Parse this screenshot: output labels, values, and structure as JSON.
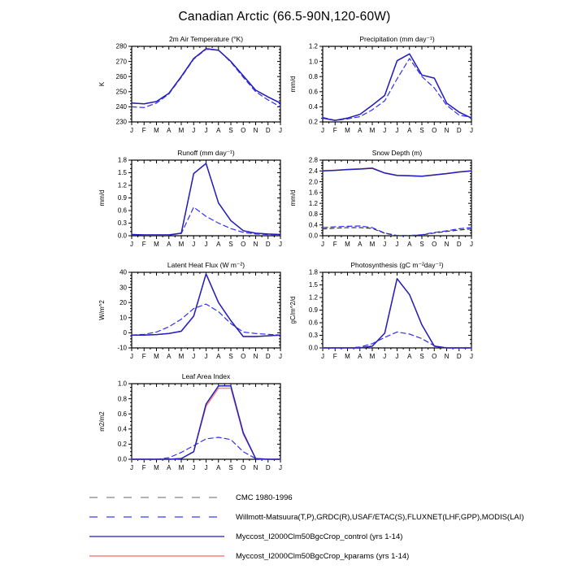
{
  "page_title": "Canadian Arctic (66.5-90N,120-60W)",
  "months": [
    "J",
    "F",
    "M",
    "A",
    "M",
    "J",
    "J",
    "A",
    "S",
    "O",
    "N",
    "D",
    "J"
  ],
  "legend": {
    "items": [
      {
        "id": "cmc",
        "label": "CMC 1980-1996",
        "color": "#999999",
        "dash": "10,11",
        "width": 1.5
      },
      {
        "id": "obs",
        "label": "Willmott-Matsuura(T,P),GRDC(R),USAF/ETAC(S),FLUXNET(LHF,GPP),MODIS(LAI)",
        "color": "#5c5cff",
        "dash": "10,11",
        "width": 1.5
      },
      {
        "id": "control",
        "label": "Myccost_I2000Clm50BgcCrop_control (yrs 1-14)",
        "color": "#4040c8",
        "dash": "",
        "width": 1.5
      },
      {
        "id": "kparams",
        "label": "Myccost_I2000Clm50BgcCrop_kparams (yrs 1-14)",
        "color": "#fa8080",
        "dash": "",
        "width": 1.5
      }
    ]
  },
  "chart_data": [
    {
      "type": "line",
      "title": "2m Air Temperature (°K)",
      "ylabel": "K",
      "ylim": [
        230,
        280
      ],
      "ystep": 10,
      "ysub": 5,
      "ydec": 0,
      "grid": false,
      "series": [
        {
          "id": "obs",
          "name": "Willmott-Matsuura(T,P)",
          "color": "#2d2dff",
          "dash": "6,4",
          "width": 1.2,
          "values": [
            240,
            239.5,
            242.5,
            248.5,
            259.5,
            271.5,
            278,
            277.5,
            269.5,
            259.5,
            250,
            244.5,
            240
          ]
        },
        {
          "id": "kparams",
          "name": "Myccost_I2000Clm50BgcCrop_kparams",
          "color": "#fa8072",
          "dash": "",
          "width": 1.4,
          "values": [
            242.5,
            242,
            243.5,
            249,
            260,
            272,
            278.3,
            277.3,
            270,
            260.5,
            251,
            246.5,
            242.5
          ]
        },
        {
          "id": "control",
          "name": "Myccost_I2000Clm50BgcCrop_control",
          "color": "#2020c0",
          "dash": "",
          "width": 1.5,
          "values": [
            242.5,
            242,
            243.5,
            249,
            260,
            272,
            278.5,
            277.5,
            270,
            260.5,
            251,
            246.5,
            242.5
          ]
        }
      ]
    },
    {
      "type": "line",
      "title": "Precipitation (mm day⁻¹)",
      "ylabel": "mm/d",
      "ylim": [
        0.2,
        1.2
      ],
      "ystep": 0.2,
      "ysub": 4,
      "ydec": 1,
      "grid": false,
      "series": [
        {
          "id": "obs",
          "name": "Willmott-Matsuura(T,P)",
          "color": "#2d2dff",
          "dash": "6,4",
          "width": 1.2,
          "values": [
            0.26,
            0.22,
            0.24,
            0.27,
            0.36,
            0.48,
            0.77,
            1.04,
            0.8,
            0.65,
            0.42,
            0.29,
            0.26
          ]
        },
        {
          "id": "kparams",
          "name": "Myccost_I2000Clm50BgcCrop_kparams",
          "color": "#fa8072",
          "dash": "",
          "width": 1.4,
          "values": [
            0.25,
            0.22,
            0.25,
            0.3,
            0.42,
            0.55,
            1.01,
            1.1,
            0.82,
            0.78,
            0.45,
            0.33,
            0.25
          ]
        },
        {
          "id": "control",
          "name": "Myccost_I2000Clm50BgcCrop_control",
          "color": "#2020c0",
          "dash": "",
          "width": 1.5,
          "values": [
            0.25,
            0.22,
            0.25,
            0.3,
            0.42,
            0.55,
            1.01,
            1.1,
            0.82,
            0.78,
            0.45,
            0.33,
            0.25
          ]
        }
      ]
    },
    {
      "type": "line",
      "title": "Runoff (mm day⁻¹)",
      "ylabel": "mm/d",
      "ylim": [
        0.0,
        1.8
      ],
      "ystep": 0.3,
      "ysub": 3,
      "ydec": 1,
      "grid": false,
      "series": [
        {
          "id": "obs",
          "name": "GRDC(R)",
          "color": "#2d2dff",
          "dash": "6,4",
          "width": 1.2,
          "values": [
            0.02,
            0.02,
            0.02,
            0.02,
            0.05,
            0.68,
            0.46,
            0.3,
            0.17,
            0.08,
            0.04,
            0.03,
            0.02
          ]
        },
        {
          "id": "kparams",
          "name": "Myccost_I2000Clm50BgcCrop_kparams",
          "color": "#fa8072",
          "dash": "",
          "width": 1.4,
          "values": [
            0.03,
            0.02,
            0.02,
            0.02,
            0.06,
            1.48,
            1.72,
            0.78,
            0.36,
            0.12,
            0.06,
            0.04,
            0.03
          ]
        },
        {
          "id": "control",
          "name": "Myccost_I2000Clm50BgcCrop_control",
          "color": "#2020c0",
          "dash": "",
          "width": 1.5,
          "values": [
            0.03,
            0.02,
            0.02,
            0.02,
            0.06,
            1.48,
            1.72,
            0.78,
            0.36,
            0.12,
            0.06,
            0.04,
            0.03
          ]
        }
      ]
    },
    {
      "type": "line",
      "title": "Snow Depth (m)",
      "ylabel": "mm/d",
      "ylim": [
        0.0,
        2.8
      ],
      "ystep": 0.4,
      "ysub": 4,
      "ydec": 1,
      "grid": false,
      "series": [
        {
          "id": "cmc",
          "name": "CMC 1980-1996",
          "color": "#333333",
          "dash": "5,4",
          "width": 1.2,
          "values": [
            0.25,
            0.28,
            0.3,
            0.3,
            0.27,
            0.09,
            0.01,
            0.01,
            0.03,
            0.1,
            0.16,
            0.21,
            0.25
          ]
        },
        {
          "id": "obs",
          "name": "USAF/ETAC(S)",
          "color": "#2d2dff",
          "dash": "6,4",
          "width": 1.2,
          "values": [
            0.3,
            0.33,
            0.35,
            0.36,
            0.3,
            0.1,
            0.01,
            0.01,
            0.04,
            0.12,
            0.18,
            0.26,
            0.3
          ]
        },
        {
          "id": "kparams",
          "name": "Myccost_I2000Clm50BgcCrop_kparams",
          "color": "#fa8072",
          "dash": "",
          "width": 1.4,
          "values": [
            2.41,
            2.43,
            2.46,
            2.48,
            2.51,
            2.33,
            2.24,
            2.23,
            2.21,
            2.26,
            2.31,
            2.37,
            2.41
          ]
        },
        {
          "id": "control",
          "name": "Myccost_I2000Clm50BgcCrop_control",
          "color": "#2020c0",
          "dash": "",
          "width": 1.5,
          "values": [
            2.4,
            2.42,
            2.45,
            2.47,
            2.5,
            2.32,
            2.23,
            2.22,
            2.2,
            2.25,
            2.3,
            2.36,
            2.4
          ]
        }
      ]
    },
    {
      "type": "line",
      "title": "Latent Heat Flux (W m⁻²)",
      "ylabel": "W/m^2",
      "ylim": [
        -10,
        40
      ],
      "ystep": 10,
      "ysub": 5,
      "ydec": 0,
      "grid": false,
      "series": [
        {
          "id": "obs",
          "name": "FLUXNET(LHF)",
          "color": "#2d2dff",
          "dash": "6,4",
          "width": 1.2,
          "values": [
            -1.5,
            -1.0,
            0.5,
            4,
            9,
            16,
            19,
            14,
            6,
            0.5,
            -0.5,
            -1.0,
            -1.5
          ]
        },
        {
          "id": "kparams",
          "name": "Myccost_I2000Clm50BgcCrop_kparams",
          "color": "#fa8072",
          "dash": "",
          "width": 1.4,
          "values": [
            -1.5,
            -1.5,
            -1.2,
            -0.5,
            1.0,
            11,
            39,
            20,
            8,
            -2.5,
            -2.5,
            -2.0,
            -1.5
          ]
        },
        {
          "id": "control",
          "name": "Myccost_I2000Clm50BgcCrop_control",
          "color": "#2020c0",
          "dash": "",
          "width": 1.5,
          "values": [
            -1.5,
            -1.5,
            -1.2,
            -0.5,
            1.0,
            11,
            39,
            20,
            8,
            -2.5,
            -2.5,
            -2.0,
            -1.5
          ]
        }
      ]
    },
    {
      "type": "line",
      "title": "Photosynthesis (gC m⁻²day⁻¹)",
      "ylabel": "gC/m^2/d",
      "ylim": [
        0.0,
        1.8
      ],
      "ystep": 0.3,
      "ysub": 3,
      "ydec": 1,
      "grid": false,
      "series": [
        {
          "id": "obs",
          "name": "FLUXNET(GPP)",
          "color": "#2d2dff",
          "dash": "6,4",
          "width": 1.2,
          "values": [
            0,
            0,
            0,
            0.02,
            0.1,
            0.25,
            0.38,
            0.33,
            0.22,
            0.05,
            0,
            0,
            0
          ]
        },
        {
          "id": "kparams",
          "name": "Myccost_I2000Clm50BgcCrop_kparams",
          "color": "#fa8072",
          "dash": "",
          "width": 1.4,
          "values": [
            0,
            0,
            0,
            0,
            0.04,
            0.35,
            1.65,
            1.27,
            0.55,
            0.04,
            0,
            0,
            0
          ]
        },
        {
          "id": "control",
          "name": "Myccost_I2000Clm50BgcCrop_control",
          "color": "#2020c0",
          "dash": "",
          "width": 1.5,
          "values": [
            0,
            0,
            0,
            0,
            0.04,
            0.35,
            1.65,
            1.27,
            0.55,
            0.04,
            0,
            0,
            0
          ]
        }
      ]
    },
    {
      "type": "line",
      "title": "Leaf Area Index",
      "ylabel": "m2/m2",
      "ylim": [
        0.0,
        1.0
      ],
      "ystep": 0.2,
      "ysub": 4,
      "ydec": 1,
      "grid": false,
      "series": [
        {
          "id": "obs",
          "name": "MODIS(LAI)",
          "color": "#2d2dff",
          "dash": "6,4",
          "width": 1.2,
          "values": [
            0,
            0,
            0,
            0.02,
            0.09,
            0.18,
            0.27,
            0.29,
            0.26,
            0.1,
            0.01,
            0,
            0
          ]
        },
        {
          "id": "kparams",
          "name": "Myccost_I2000Clm50BgcCrop_kparams",
          "color": "#fa8072",
          "dash": "",
          "width": 1.4,
          "values": [
            0,
            0,
            0,
            0,
            0.01,
            0.1,
            0.7,
            0.94,
            0.94,
            0.33,
            0.01,
            0,
            0
          ]
        },
        {
          "id": "control",
          "name": "Myccost_I2000Clm50BgcCrop_control",
          "color": "#2020c0",
          "dash": "",
          "width": 1.5,
          "values": [
            0,
            0,
            0,
            0,
            0.01,
            0.1,
            0.73,
            0.97,
            0.97,
            0.35,
            0.01,
            0,
            0
          ]
        }
      ]
    }
  ]
}
